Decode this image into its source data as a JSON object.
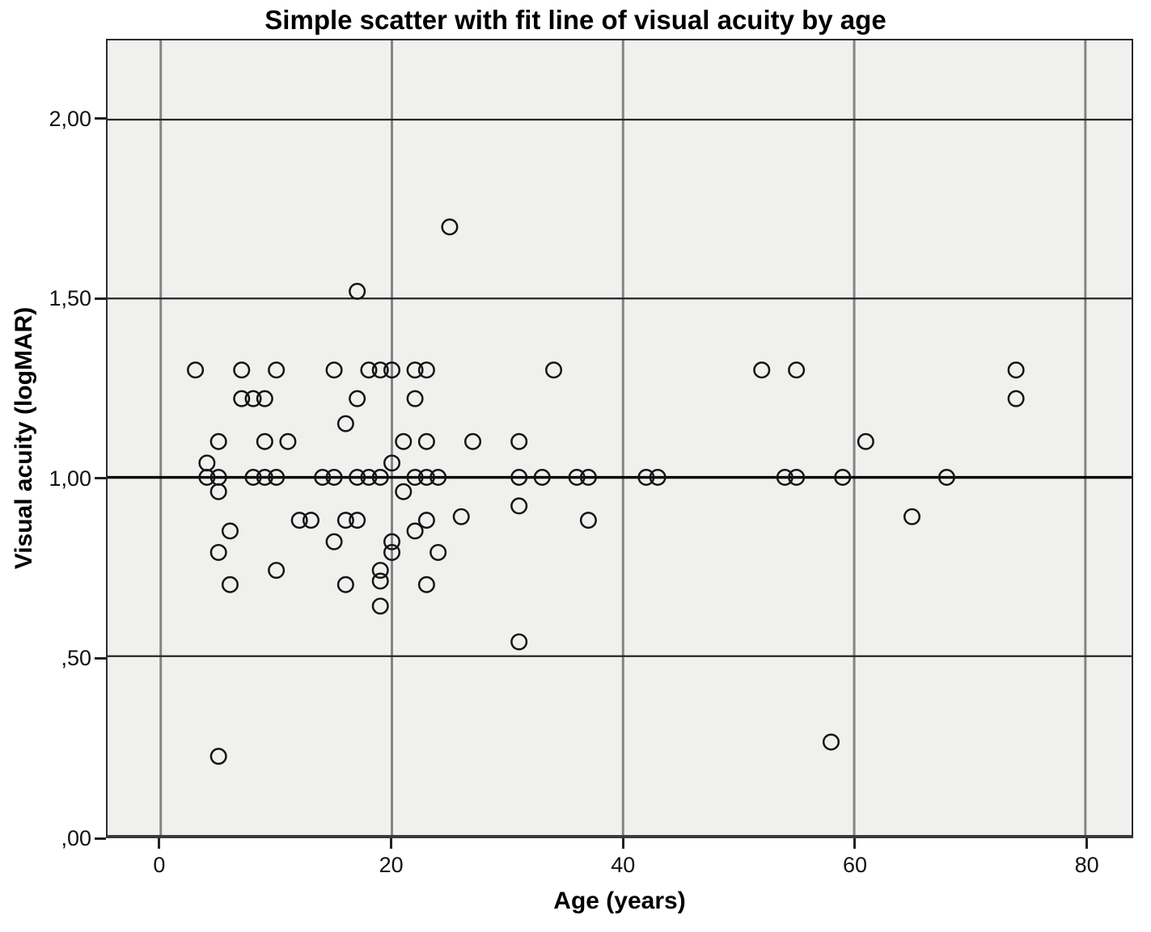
{
  "title": "Simple scatter with fit line of visual acuity by age",
  "chart_data": {
    "type": "scatter",
    "title": "Simple scatter with fit line of visual acuity by age",
    "xlabel": "Age (years)",
    "ylabel": "Visual acuity (logMAR)",
    "xlim": [
      -4.6,
      84.0
    ],
    "ylim": [
      0,
      2.2215
    ],
    "x_ticks": [
      {
        "v": 0,
        "label": "0"
      },
      {
        "v": 20,
        "label": "20"
      },
      {
        "v": 40,
        "label": "40"
      },
      {
        "v": 60,
        "label": "60"
      },
      {
        "v": 80,
        "label": "80"
      }
    ],
    "y_ticks": [
      {
        "v": 0.0,
        "label": ",00"
      },
      {
        "v": 0.5,
        "label": ",50"
      },
      {
        "v": 1.0,
        "label": "1,00"
      },
      {
        "v": 1.5,
        "label": "1,50"
      },
      {
        "v": 2.0,
        "label": "2,00"
      }
    ],
    "grid": {
      "vertical": true,
      "horizontal": true
    },
    "fit_line": {
      "x1": -4.6,
      "y1": 1.0,
      "x2": 84.0,
      "y2": 1.0
    },
    "marker": {
      "shape": "open-circle",
      "radius": 9.3,
      "stroke_width": 2.5
    },
    "points": [
      [
        3,
        1.3
      ],
      [
        7,
        1.3
      ],
      [
        10,
        1.3
      ],
      [
        15,
        1.3
      ],
      [
        18,
        1.3
      ],
      [
        19,
        1.3
      ],
      [
        20,
        1.3
      ],
      [
        22,
        1.3
      ],
      [
        23,
        1.3
      ],
      [
        34,
        1.3
      ],
      [
        52,
        1.3
      ],
      [
        55,
        1.3
      ],
      [
        74,
        1.3
      ],
      [
        7,
        1.22
      ],
      [
        8,
        1.22
      ],
      [
        9,
        1.22
      ],
      [
        17,
        1.22
      ],
      [
        22,
        1.22
      ],
      [
        74,
        1.22
      ],
      [
        16,
        1.15
      ],
      [
        5,
        1.1
      ],
      [
        9,
        1.1
      ],
      [
        11,
        1.1
      ],
      [
        21,
        1.1
      ],
      [
        23,
        1.1
      ],
      [
        27,
        1.1
      ],
      [
        31,
        1.1
      ],
      [
        61,
        1.1
      ],
      [
        4,
        1.04
      ],
      [
        20,
        1.04
      ],
      [
        4,
        1.0
      ],
      [
        5,
        1.0
      ],
      [
        8,
        1.0
      ],
      [
        9,
        1.0
      ],
      [
        10,
        1.0
      ],
      [
        14,
        1.0
      ],
      [
        15,
        1.0
      ],
      [
        17,
        1.0
      ],
      [
        18,
        1.0
      ],
      [
        19,
        1.0
      ],
      [
        22,
        1.0
      ],
      [
        23,
        1.0
      ],
      [
        24,
        1.0
      ],
      [
        31,
        1.0
      ],
      [
        33,
        1.0
      ],
      [
        36,
        1.0
      ],
      [
        37,
        1.0
      ],
      [
        42,
        1.0
      ],
      [
        43,
        1.0
      ],
      [
        54,
        1.0
      ],
      [
        55,
        1.0
      ],
      [
        59,
        1.0
      ],
      [
        68,
        1.0
      ],
      [
        5,
        0.96
      ],
      [
        21,
        0.96
      ],
      [
        31,
        0.92
      ],
      [
        12,
        0.88
      ],
      [
        13,
        0.88
      ],
      [
        16,
        0.88
      ],
      [
        17,
        0.88
      ],
      [
        23,
        0.88
      ],
      [
        26,
        0.89
      ],
      [
        37,
        0.88
      ],
      [
        65,
        0.89
      ],
      [
        6,
        0.85
      ],
      [
        22,
        0.85
      ],
      [
        15,
        0.82
      ],
      [
        20,
        0.82
      ],
      [
        5,
        0.79
      ],
      [
        20,
        0.79
      ],
      [
        24,
        0.79
      ],
      [
        10,
        0.74
      ],
      [
        19,
        0.74
      ],
      [
        6,
        0.7
      ],
      [
        16,
        0.7
      ],
      [
        19,
        0.71
      ],
      [
        23,
        0.7
      ],
      [
        19,
        0.64
      ],
      [
        31,
        0.54
      ],
      [
        58,
        0.26
      ],
      [
        5,
        0.22
      ],
      [
        17,
        1.52
      ],
      [
        25,
        1.7
      ]
    ],
    "colors": {
      "panel_background": "#f0f0ee",
      "vertical_gridline": "#848484",
      "horizontal_gridline": "#262626",
      "fit_line": "#000000",
      "marker_stroke": "#141414",
      "frame": "#2b2b2b",
      "tick": "#222222",
      "text": "#000000"
    }
  }
}
